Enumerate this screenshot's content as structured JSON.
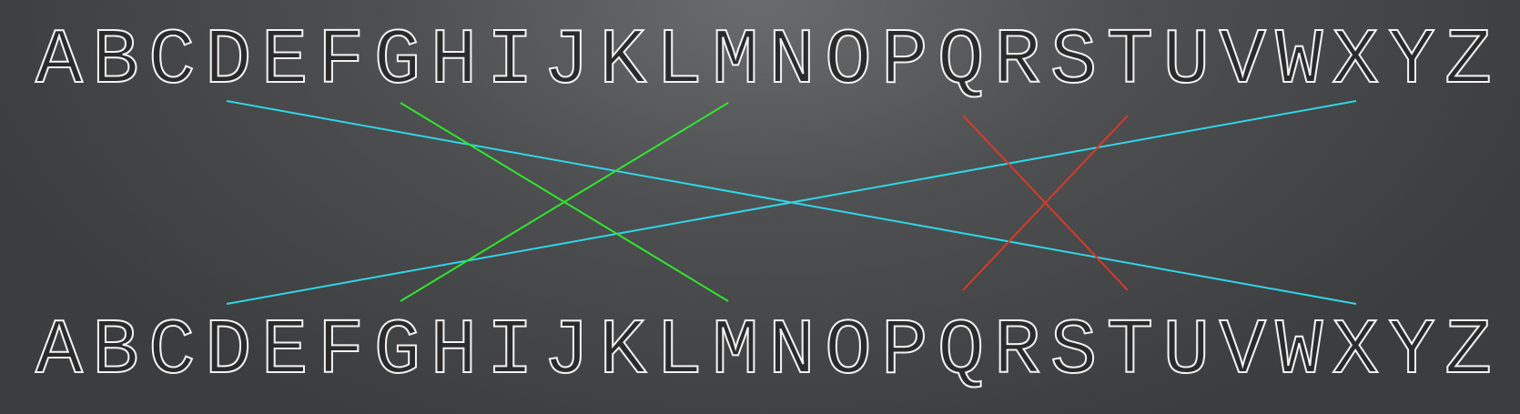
{
  "diagram": {
    "top_letters": [
      "A",
      "B",
      "C",
      "D",
      "E",
      "F",
      "G",
      "H",
      "I",
      "J",
      "K",
      "L",
      "M",
      "N",
      "O",
      "P",
      "Q",
      "R",
      "S",
      "T",
      "U",
      "V",
      "W",
      "X",
      "Y",
      "Z"
    ],
    "bottom_letters": [
      "A",
      "B",
      "C",
      "D",
      "E",
      "F",
      "G",
      "H",
      "I",
      "J",
      "K",
      "L",
      "M",
      "N",
      "O",
      "P",
      "Q",
      "R",
      "S",
      "T",
      "U",
      "V",
      "W",
      "X",
      "Y",
      "Z"
    ],
    "colors": {
      "cyan": "#2fd6e6",
      "green": "#2ee62e",
      "red": "#d93a26",
      "letter_outline": "#f2f2f2"
    }
  }
}
